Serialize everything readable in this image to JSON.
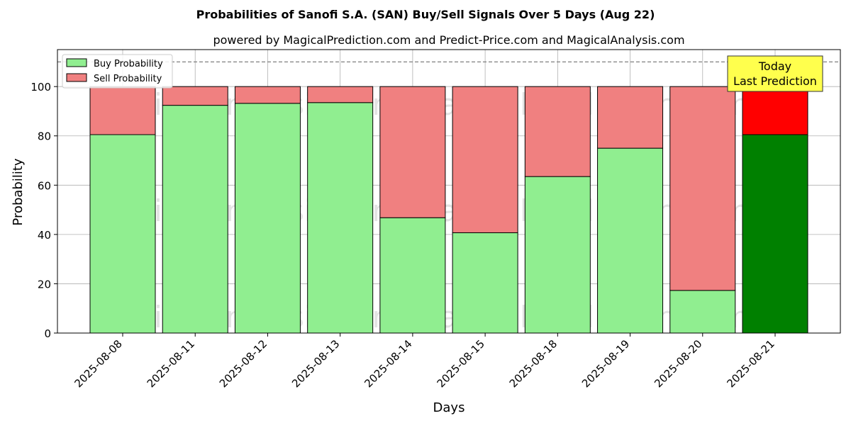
{
  "chart_data": {
    "type": "bar",
    "stacked": true,
    "title": "Probabilities of Sanofi S.A. (SAN) Buy/Sell Signals Over 5 Days (Aug 22)",
    "subtitle": "powered by MagicalPrediction.com and Predict-Price.com and MagicalAnalysis.com",
    "xlabel": "Days",
    "ylabel": "Probability",
    "ylim": [
      0,
      115
    ],
    "yticks": [
      0,
      20,
      40,
      60,
      80,
      100
    ],
    "grid": true,
    "legend_position": "top-left",
    "categories": [
      "2025-08-08",
      "2025-08-11",
      "2025-08-12",
      "2025-08-13",
      "2025-08-14",
      "2025-08-15",
      "2025-08-18",
      "2025-08-19",
      "2025-08-20",
      "2025-08-21"
    ],
    "series": [
      {
        "name": "Buy Probability",
        "color": "#90ee90",
        "highlight_color": "#008000",
        "values": [
          80.5,
          92.4,
          93.2,
          93.5,
          46.8,
          40.7,
          63.5,
          75.0,
          17.3,
          80.5
        ]
      },
      {
        "name": "Sell Probability",
        "color": "#f08080",
        "highlight_color": "#ff0000",
        "values": [
          19.5,
          7.6,
          6.8,
          6.5,
          53.2,
          59.3,
          36.5,
          25.0,
          82.7,
          19.5
        ]
      }
    ],
    "highlight_index": 9,
    "reference_line": {
      "y": 110,
      "style": "dashed",
      "color": "#808080"
    },
    "annotation": {
      "lines": [
        "Today",
        "Last Prediction"
      ],
      "background": "#ffff4d"
    },
    "watermarks": [
      "MagicalAnalysis.com",
      "MagicalPrediction.com"
    ]
  }
}
